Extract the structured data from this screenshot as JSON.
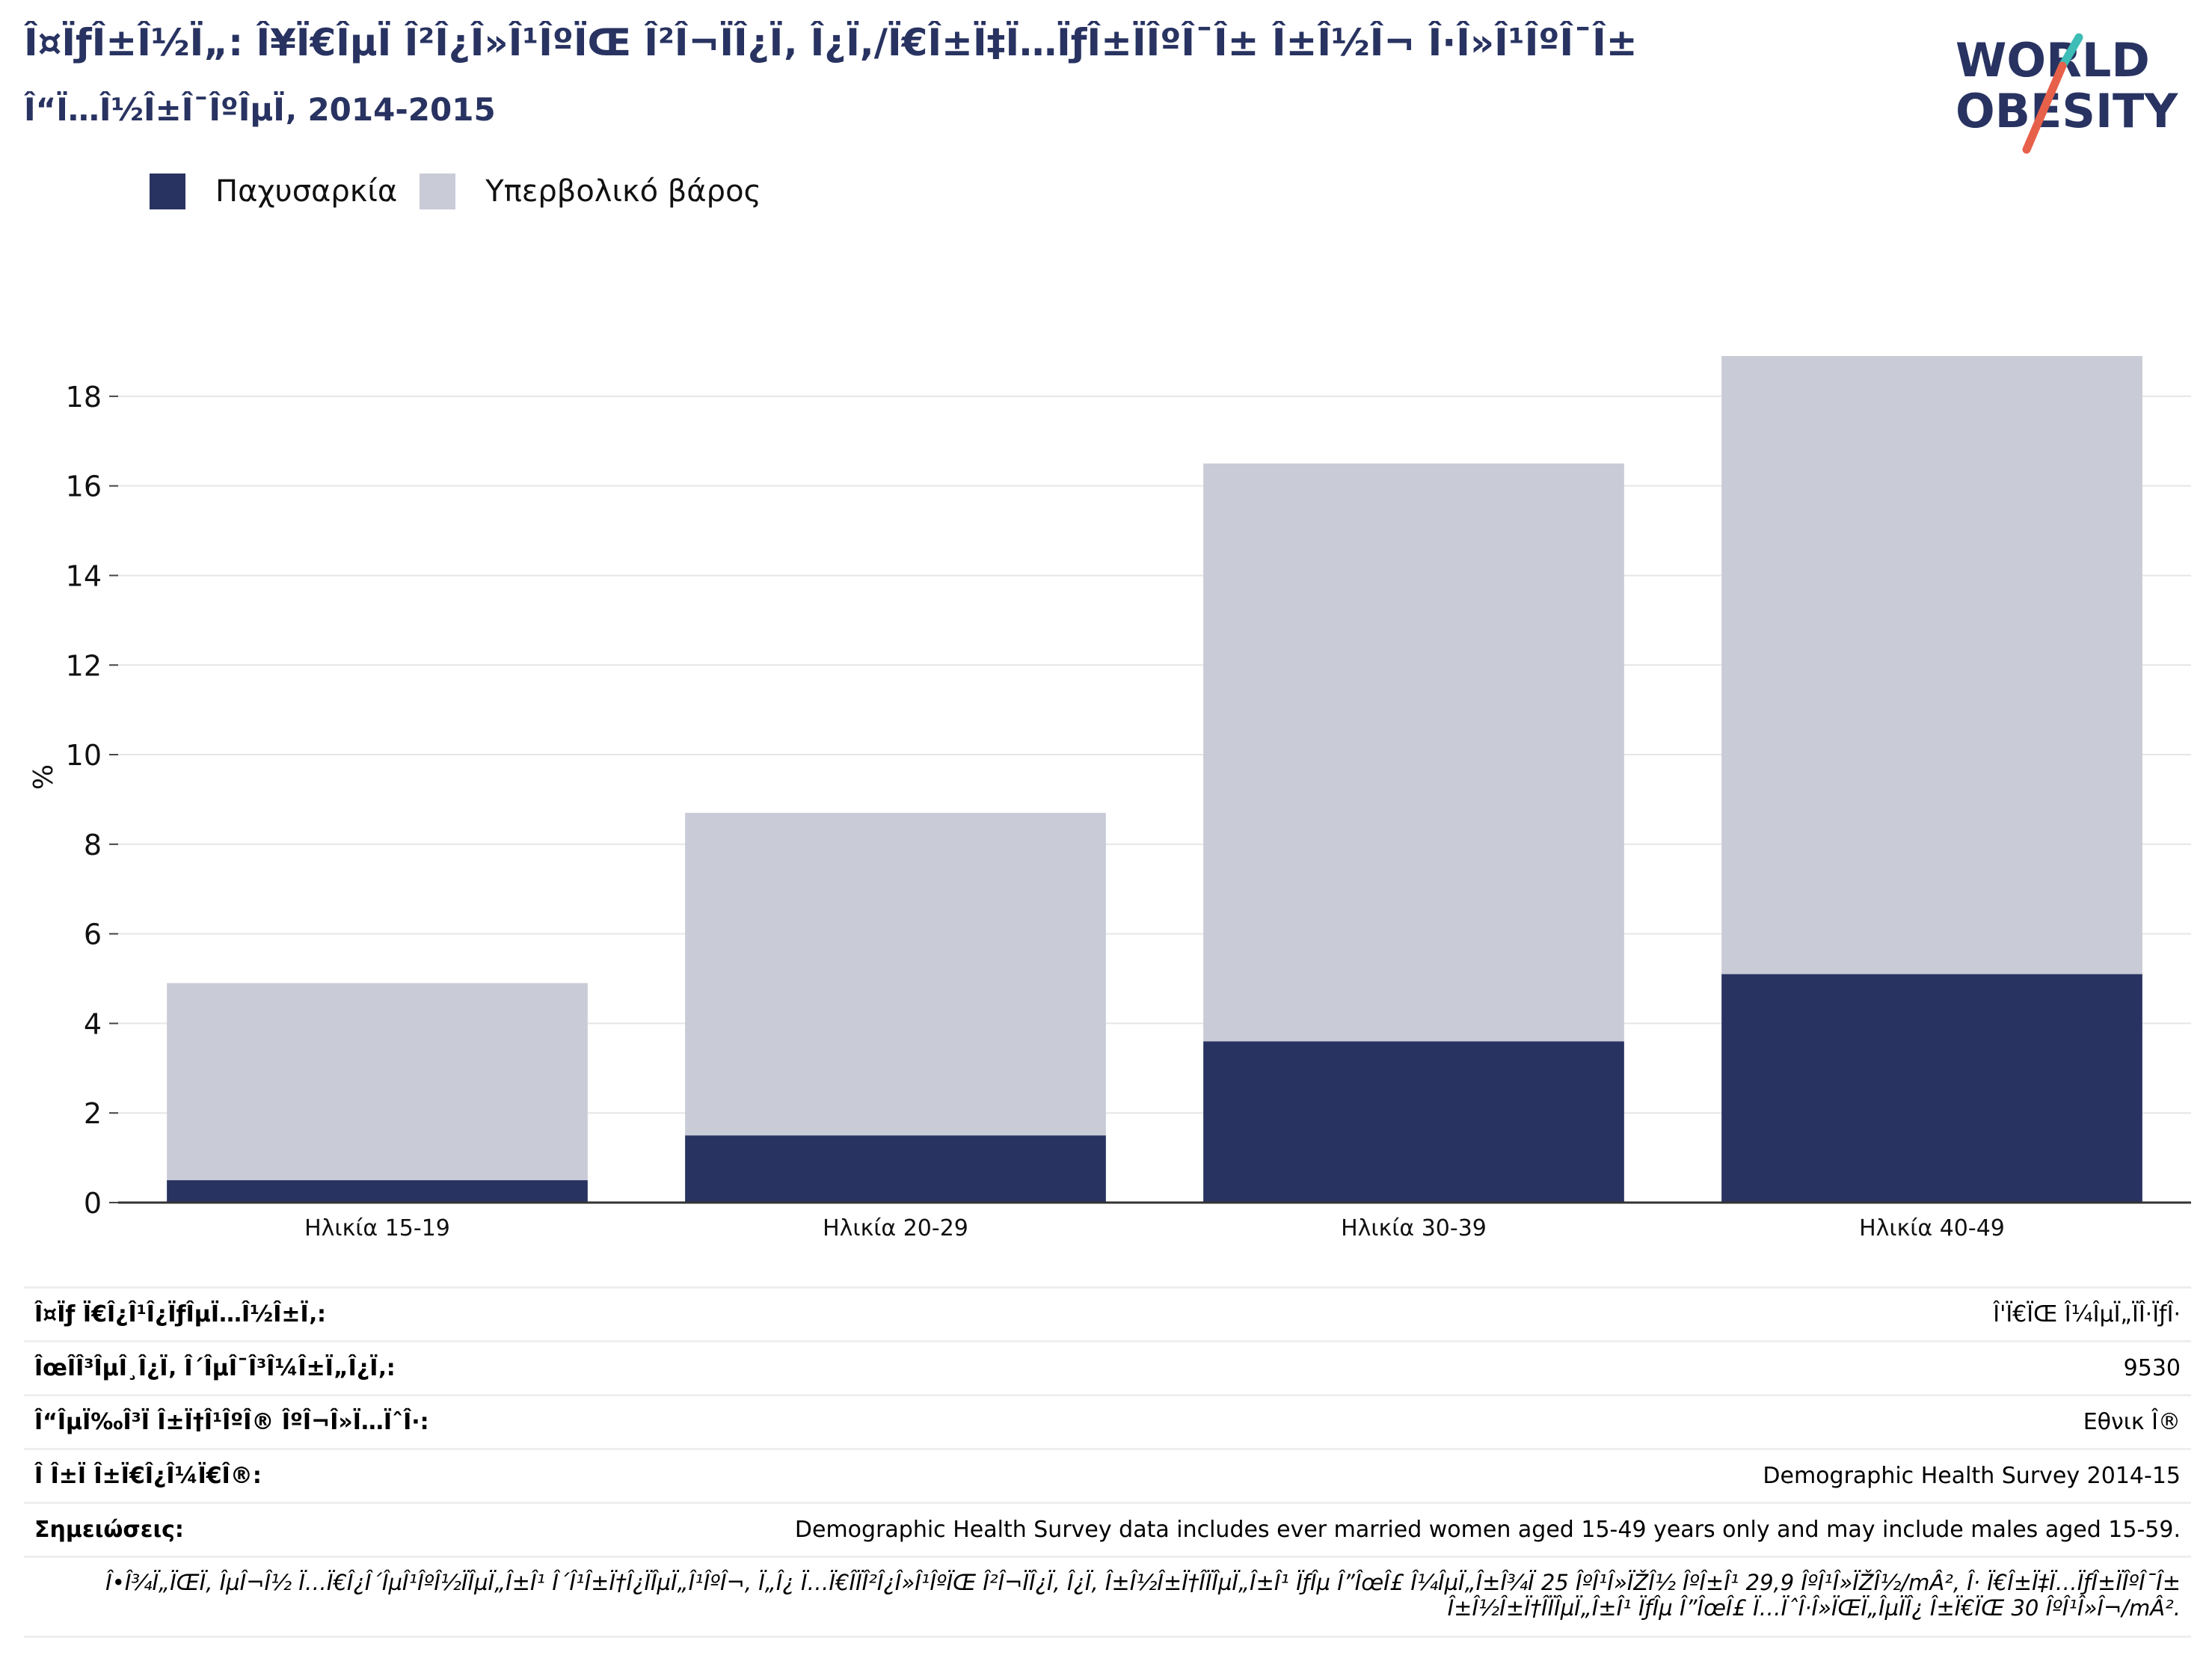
{
  "header": {
    "title": "Î¤ÏƒÎ±Î½Ï„: Î¥Ï€ÎµÏ Î²Î¿Î»Î¹ÎºÏŒ Î²Î¬ÏÎ¿Ï‚ Î¿Ï,/Ï€Î±Ï‡Ï…ÏƒÎ±ÏÎºÎ¯Î± Î±Î½Î¬ Î·Î»Î¹ÎºÎ¯Î±",
    "subtitle": "Î“Ï…Î½Î±Î¯ÎºÎµÏ‚ 2014-2015"
  },
  "logo": {
    "line1": "WORLD",
    "line2": "OBESITY"
  },
  "legend": [
    {
      "label": "Παχυσαρκία",
      "color": "#283361"
    },
    {
      "label": "Υπερβολικό βάρος",
      "color": "#c9cbd7"
    }
  ],
  "chart_data": {
    "type": "bar",
    "stacked": true,
    "categories": [
      "Ηλικία 15-19",
      "Ηλικία 20-29",
      "Ηλικία 30-39",
      "Ηλικία 40-49"
    ],
    "series": [
      {
        "name": "Παχυσαρκία",
        "color": "#283361",
        "values": [
          0.5,
          1.5,
          3.6,
          5.1
        ]
      },
      {
        "name": "Υπερβολικό βάρος",
        "color": "#c9cbd7",
        "values": [
          4.4,
          7.2,
          12.9,
          13.8
        ]
      }
    ],
    "ylabel": "%",
    "ylim": [
      0,
      19
    ],
    "yticks": [
      0,
      2,
      4,
      6,
      8,
      10,
      12,
      14,
      16,
      18
    ],
    "grid": true
  },
  "info": {
    "rows": [
      {
        "label": "Î¤Ïƒ Ï€Î¿Î¹Î¿ÏƒÎµÏ…Î½Î±Ï‚:",
        "value": "Î'Ï€ÏŒ Î¼ÎµÏ„ÏÎ·ÏƒÎ·"
      },
      {
        "label": "ÎœÎ­Î³ÎµÎ¸Î¿Ï‚ Î´ÎµÎ¯Î³Î¼Î±Ï„Î¿Ï‚:",
        "value": "9530"
      },
      {
        "label": "Î“ÎµÏ‰Î³Ï Î±Ï†Î¹ÎºÎ® ÎºÎ¬Î»Ï…ÏˆÎ·:",
        "value": "Εθνικ Î®"
      },
      {
        "label": "Î Î±Ï Î±Ï€Î¿Î¼Ï€Î®:",
        "value": "Demographic Health Survey 2014-15"
      },
      {
        "label": "Σημειώσεις:",
        "value": "Demographic Health Survey data includes ever married women aged 15-49 years only and may include males aged 15-59."
      }
    ],
    "footnote": "Î•Î¾Ï„ÏŒÏ‚ ÎµÎ¬Î½ Ï…Ï€Î¿Î´ÎµÎ¹ÎºÎ½ÏÎµÏ„Î±Î¹ Î´Î¹Î±Ï†Î¿ÏÎµÏ„Î¹ÎºÎ¬, Ï„Î¿ Ï…Ï€Î­ÏÎ²Î¿Î»Î¹ÎºÏŒ Î²Î¬ÏÎ¿Ï‚ Î¿Ï, Î±Î½Î±Ï†Î­ÏÎµÏ„Î±Î¹ ÏƒÎµ Î”ÎœÎ£ Î¼ÎµÏ„Î±Î¾Ï 25 ÎºÎ¹Î»ÏŽÎ½ ÎºÎ±Î¹ 29,9 ÎºÎ¹Î»ÏŽÎ½/mÂ², Î· Ï€Î±Ï‡Ï…ÏƒÎ±ÏÎºÎ¯Î± Î±Î½Î±Ï†Î­ÏÎµÏ„Î±Î¹ ÏƒÎµ Î”ÎœÎ£ Ï…ÏˆÎ·Î»ÏŒÏ„ÎµÏÎ¿ Î±Ï€ÏŒ 30 ÎºÎ¹Î»Î¬/mÂ²."
  }
}
